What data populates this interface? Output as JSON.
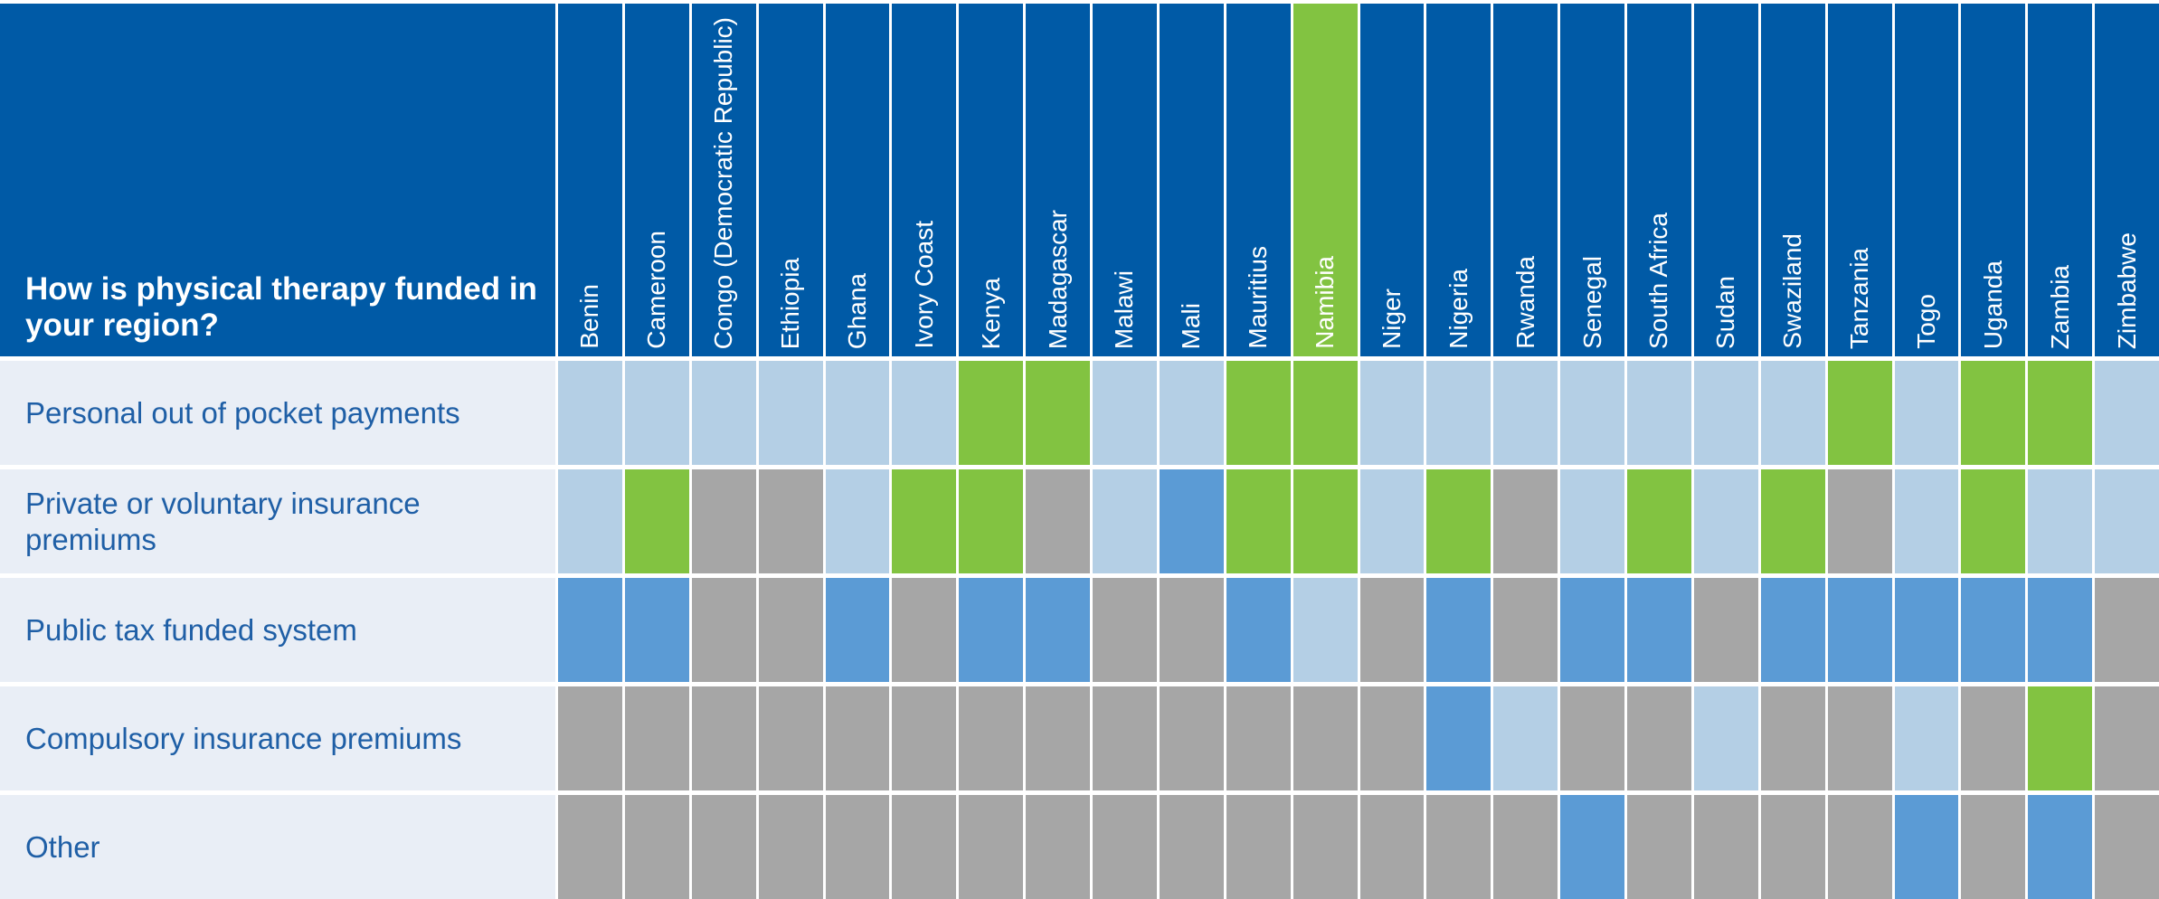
{
  "table": {
    "question": "How is physical therapy funded in your region?",
    "columns": [
      {
        "name": "Benin",
        "header_color": "#005aa6"
      },
      {
        "name": "Cameroon",
        "header_color": "#005aa6"
      },
      {
        "name": "Congo (Democratic Republic)",
        "header_color": "#005aa6"
      },
      {
        "name": "Ethiopia",
        "header_color": "#005aa6"
      },
      {
        "name": "Ghana",
        "header_color": "#005aa6"
      },
      {
        "name": "Ivory Coast",
        "header_color": "#005aa6"
      },
      {
        "name": "Kenya",
        "header_color": "#005aa6"
      },
      {
        "name": "Madagascar",
        "header_color": "#005aa6"
      },
      {
        "name": "Malawi",
        "header_color": "#005aa6"
      },
      {
        "name": "Mali",
        "header_color": "#005aa6"
      },
      {
        "name": "Mauritius",
        "header_color": "#005aa6"
      },
      {
        "name": "Namibia",
        "header_color": "#82c341"
      },
      {
        "name": "Niger",
        "header_color": "#005aa6"
      },
      {
        "name": "Nigeria",
        "header_color": "#005aa6"
      },
      {
        "name": "Rwanda",
        "header_color": "#005aa6"
      },
      {
        "name": "Senegal",
        "header_color": "#005aa6"
      },
      {
        "name": "South Africa",
        "header_color": "#005aa6"
      },
      {
        "name": "Sudan",
        "header_color": "#005aa6"
      },
      {
        "name": "Swaziland",
        "header_color": "#005aa6"
      },
      {
        "name": "Tanzania",
        "header_color": "#005aa6"
      },
      {
        "name": "Togo",
        "header_color": "#005aa6"
      },
      {
        "name": "Uganda",
        "header_color": "#005aa6"
      },
      {
        "name": "Zambia",
        "header_color": "#005aa6"
      },
      {
        "name": "Zimbabwe",
        "header_color": "#005aa6"
      }
    ],
    "rows": [
      {
        "label": "Personal out of pocket payments",
        "cells": [
          "#b4cfe5",
          "#b4cfe5",
          "#b4cfe5",
          "#b4cfe5",
          "#b4cfe5",
          "#b4cfe5",
          "#82c341",
          "#82c341",
          "#b4cfe5",
          "#b4cfe5",
          "#82c341",
          "#82c341",
          "#b4cfe5",
          "#b4cfe5",
          "#b4cfe5",
          "#b4cfe5",
          "#b4cfe5",
          "#b4cfe5",
          "#b4cfe5",
          "#82c341",
          "#b4cfe5",
          "#82c341",
          "#82c341",
          "#b4cfe5"
        ]
      },
      {
        "label": "Private or voluntary insurance premiums",
        "cells": [
          "#b4cfe5",
          "#82c341",
          "#a6a6a6",
          "#a6a6a6",
          "#b4cfe5",
          "#82c341",
          "#82c341",
          "#a6a6a6",
          "#b4cfe5",
          "#5b9bd5",
          "#82c341",
          "#82c341",
          "#b4cfe5",
          "#82c341",
          "#a6a6a6",
          "#b4cfe5",
          "#82c341",
          "#b4cfe5",
          "#82c341",
          "#a6a6a6",
          "#b4cfe5",
          "#82c341",
          "#b4cfe5",
          "#b4cfe5"
        ]
      },
      {
        "label": "Public tax funded system",
        "cells": [
          "#5b9bd5",
          "#5b9bd5",
          "#a6a6a6",
          "#a6a6a6",
          "#5b9bd5",
          "#a6a6a6",
          "#5b9bd5",
          "#5b9bd5",
          "#a6a6a6",
          "#a6a6a6",
          "#5b9bd5",
          "#b4cfe5",
          "#a6a6a6",
          "#5b9bd5",
          "#a6a6a6",
          "#5b9bd5",
          "#5b9bd5",
          "#a6a6a6",
          "#5b9bd5",
          "#5b9bd5",
          "#5b9bd5",
          "#5b9bd5",
          "#5b9bd5",
          "#a6a6a6"
        ]
      },
      {
        "label": "Compulsory insurance premiums",
        "cells": [
          "#a6a6a6",
          "#a6a6a6",
          "#a6a6a6",
          "#a6a6a6",
          "#a6a6a6",
          "#a6a6a6",
          "#a6a6a6",
          "#a6a6a6",
          "#a6a6a6",
          "#a6a6a6",
          "#a6a6a6",
          "#a6a6a6",
          "#a6a6a6",
          "#5b9bd5",
          "#b4cfe5",
          "#a6a6a6",
          "#a6a6a6",
          "#b4cfe5",
          "#a6a6a6",
          "#a6a6a6",
          "#b4cfe5",
          "#a6a6a6",
          "#82c341",
          "#a6a6a6"
        ]
      },
      {
        "label": "Other",
        "cells": [
          "#a6a6a6",
          "#a6a6a6",
          "#a6a6a6",
          "#a6a6a6",
          "#a6a6a6",
          "#a6a6a6",
          "#a6a6a6",
          "#a6a6a6",
          "#a6a6a6",
          "#a6a6a6",
          "#a6a6a6",
          "#a6a6a6",
          "#a6a6a6",
          "#a6a6a6",
          "#a6a6a6",
          "#5b9bd5",
          "#a6a6a6",
          "#a6a6a6",
          "#a6a6a6",
          "#a6a6a6",
          "#5b9bd5",
          "#a6a6a6",
          "#5b9bd5",
          "#a6a6a6"
        ]
      }
    ]
  }
}
